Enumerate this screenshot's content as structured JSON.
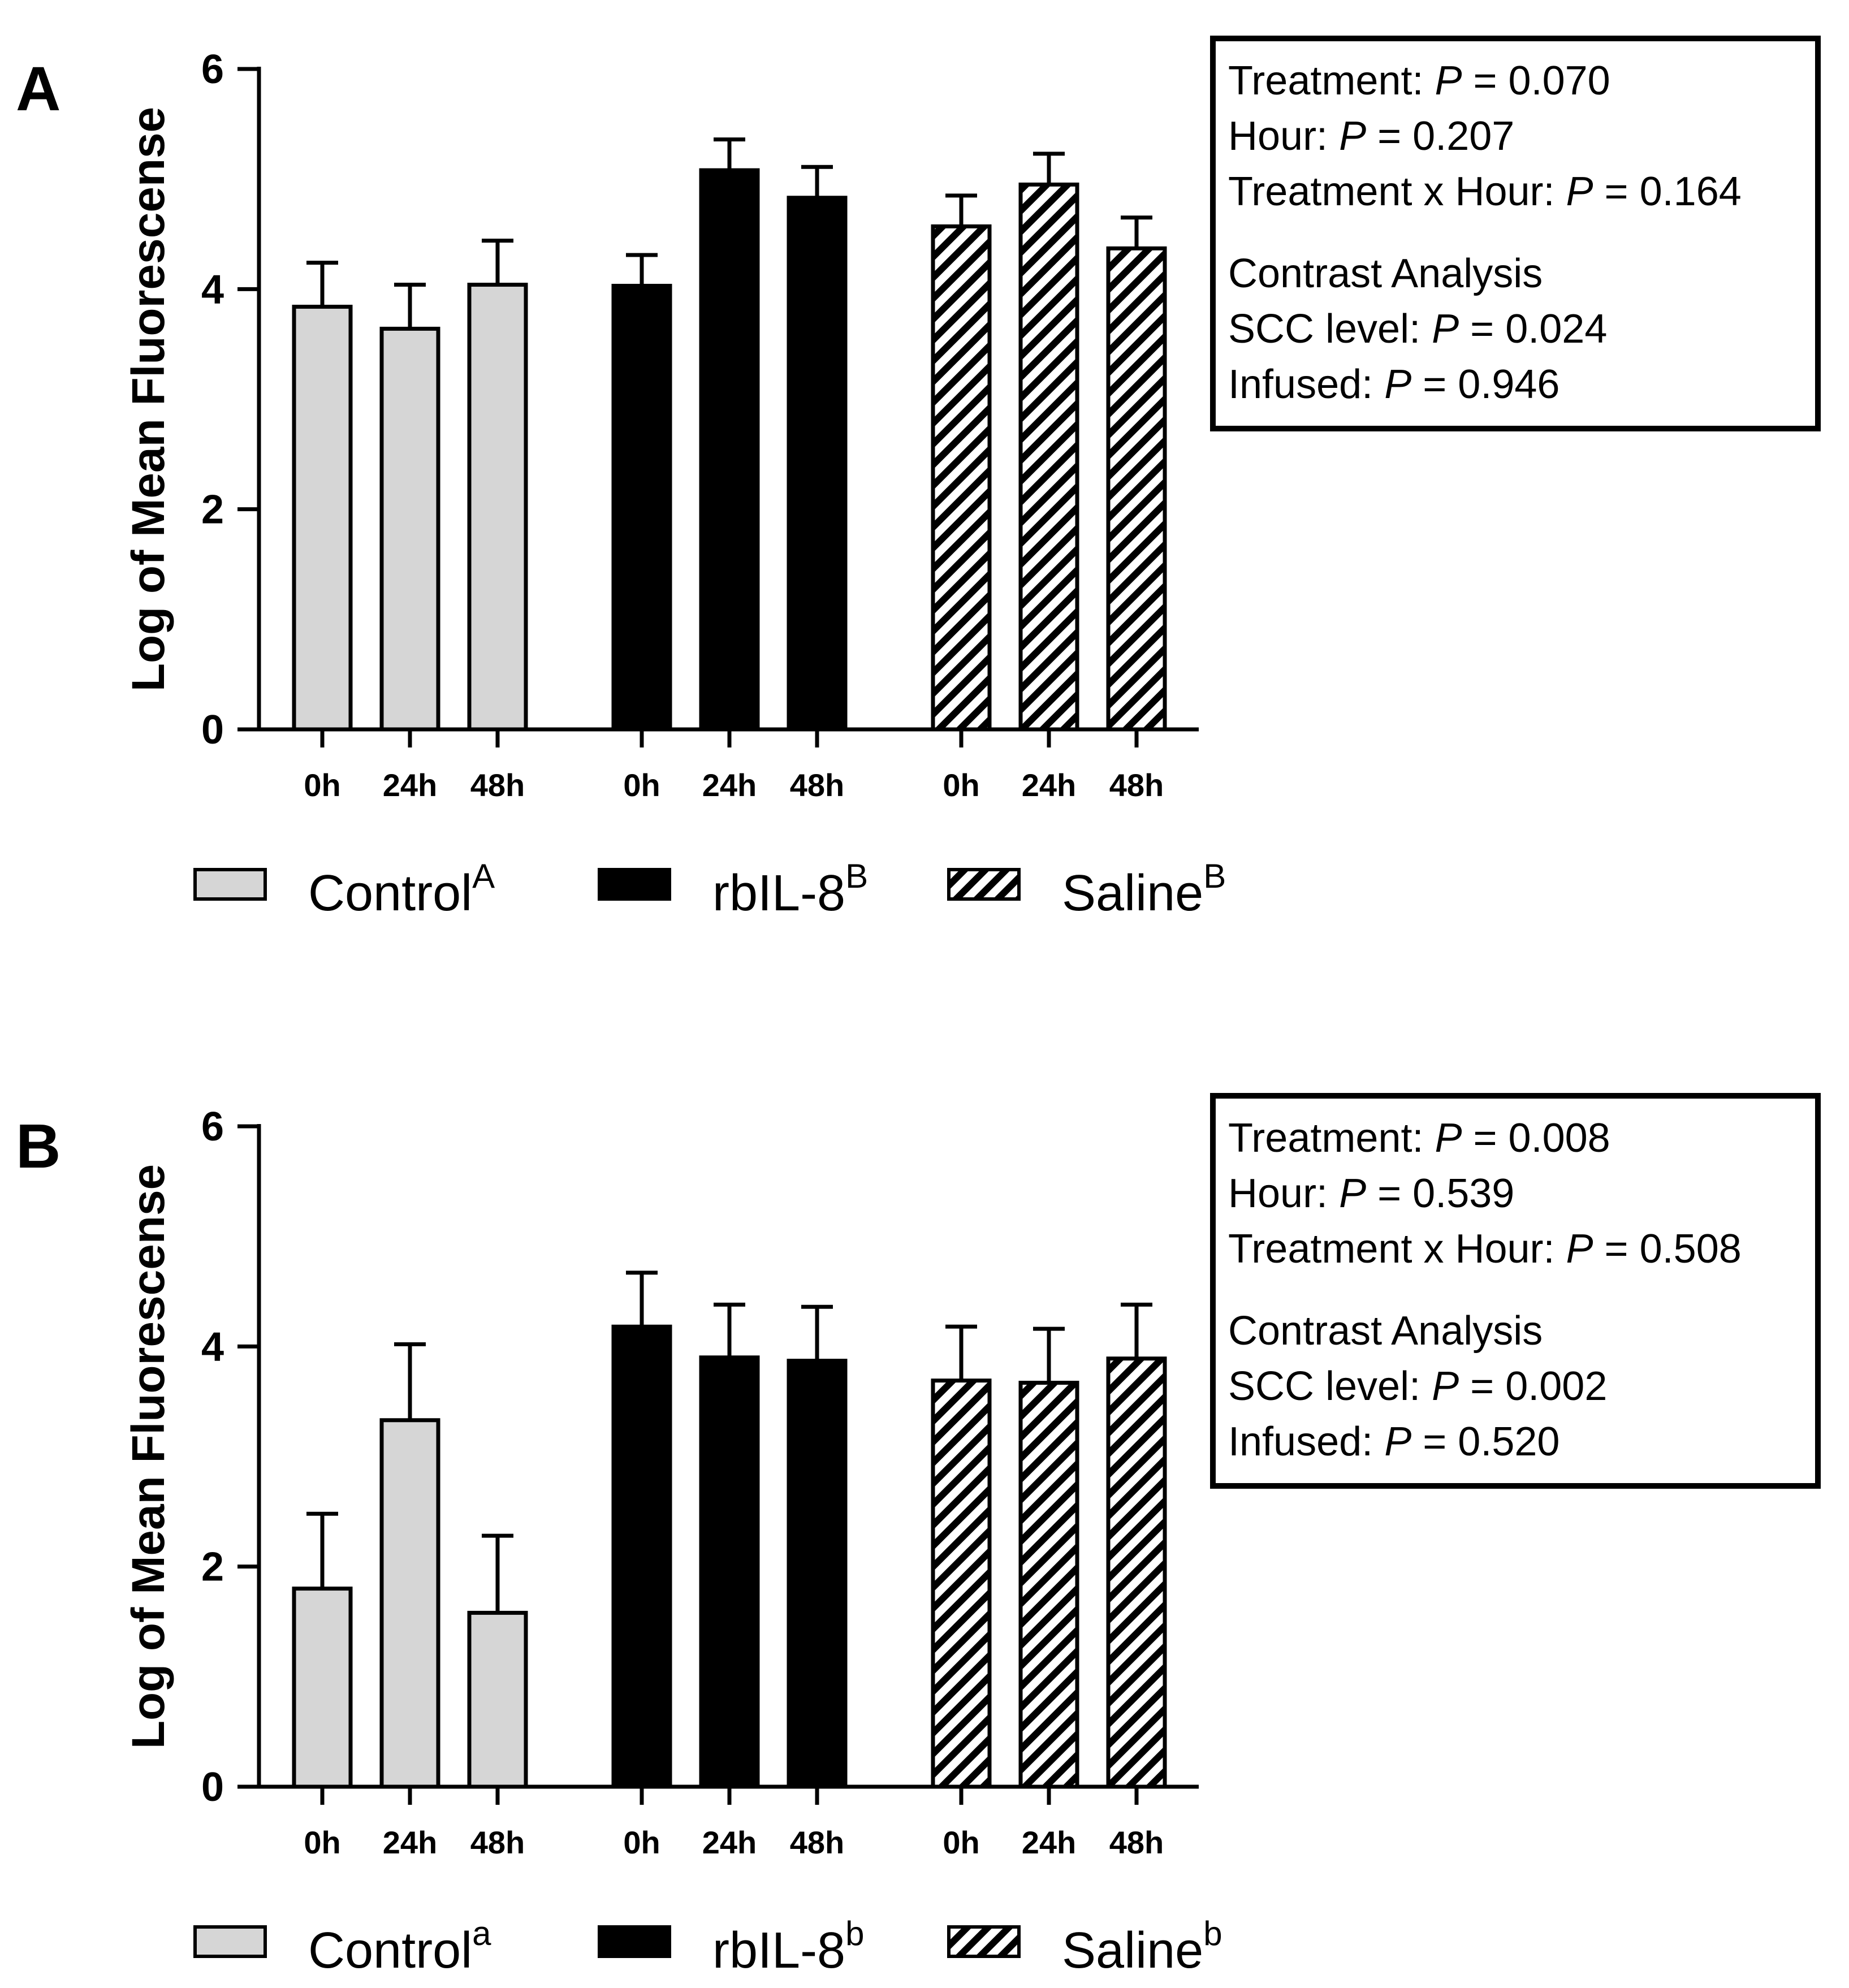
{
  "colors": {
    "control": "#d6d6d6",
    "rbil8": "#000000",
    "saline_stripe": "#000000",
    "saline_bg": "#ffffff",
    "axis": "#000000"
  },
  "chart_data": [
    {
      "type": "bar",
      "panel": "A",
      "ylabel": "Log of Mean Fluorescense",
      "ylim": [
        0,
        6
      ],
      "yticks": [
        "0",
        "2",
        "4",
        "6"
      ],
      "categories": [
        "0h",
        "24h",
        "48h"
      ],
      "series": [
        {
          "name": "Control",
          "sup": "A",
          "values": [
            3.84,
            3.64,
            4.04
          ],
          "errors": [
            0.4,
            0.4,
            0.4
          ],
          "fill": "control"
        },
        {
          "name": "rbIL-8",
          "sup": "B",
          "values": [
            4.03,
            5.08,
            4.83
          ],
          "errors": [
            0.28,
            0.28,
            0.28
          ],
          "fill": "rbil8"
        },
        {
          "name": "Saline",
          "sup": "B",
          "values": [
            4.57,
            4.95,
            4.37
          ],
          "errors": [
            0.28,
            0.28,
            0.28
          ],
          "fill": "saline"
        }
      ],
      "stats": [
        {
          "pre": "Treatment: ",
          "p": "P",
          "post": " = 0.070"
        },
        {
          "pre": "Hour: ",
          "p": "P",
          "post": " = 0.207"
        },
        {
          "pre": "Treatment x Hour: ",
          "p": "P",
          "post": " = 0.164"
        },
        {
          "pre": "Contrast Analysis",
          "p": "",
          "post": ""
        },
        {
          "pre": "SCC level: ",
          "p": "P",
          "post": " = 0.024"
        },
        {
          "pre": "Infused: ",
          "p": "P",
          "post": " = 0.946"
        }
      ]
    },
    {
      "type": "bar",
      "panel": "B",
      "ylabel": "Log of Mean Fluorescense",
      "ylim": [
        0,
        6
      ],
      "yticks": [
        "0",
        "2",
        "4",
        "6"
      ],
      "categories": [
        "0h",
        "24h",
        "48h"
      ],
      "series": [
        {
          "name": "Control",
          "sup": "a",
          "values": [
            1.8,
            3.33,
            1.58
          ],
          "errors": [
            0.68,
            0.69,
            0.7
          ],
          "fill": "control"
        },
        {
          "name": "rbIL-8",
          "sup": "b",
          "values": [
            4.18,
            3.9,
            3.87
          ],
          "errors": [
            0.49,
            0.48,
            0.49
          ],
          "fill": "rbil8"
        },
        {
          "name": "Saline",
          "sup": "b",
          "values": [
            3.69,
            3.67,
            3.89
          ],
          "errors": [
            0.49,
            0.49,
            0.49
          ],
          "fill": "saline"
        }
      ],
      "stats": [
        {
          "pre": "Treatment: ",
          "p": "P",
          "post": " = 0.008"
        },
        {
          "pre": "Hour: ",
          "p": "P",
          "post": " = 0.539"
        },
        {
          "pre": "Treatment x Hour: ",
          "p": "P",
          "post": " = 0.508"
        },
        {
          "pre": "Contrast Analysis",
          "p": "",
          "post": ""
        },
        {
          "pre": "SCC level: ",
          "p": "P",
          "post": " = 0.002"
        },
        {
          "pre": "Infused: ",
          "p": "P",
          "post": " = 0.520"
        }
      ]
    }
  ]
}
